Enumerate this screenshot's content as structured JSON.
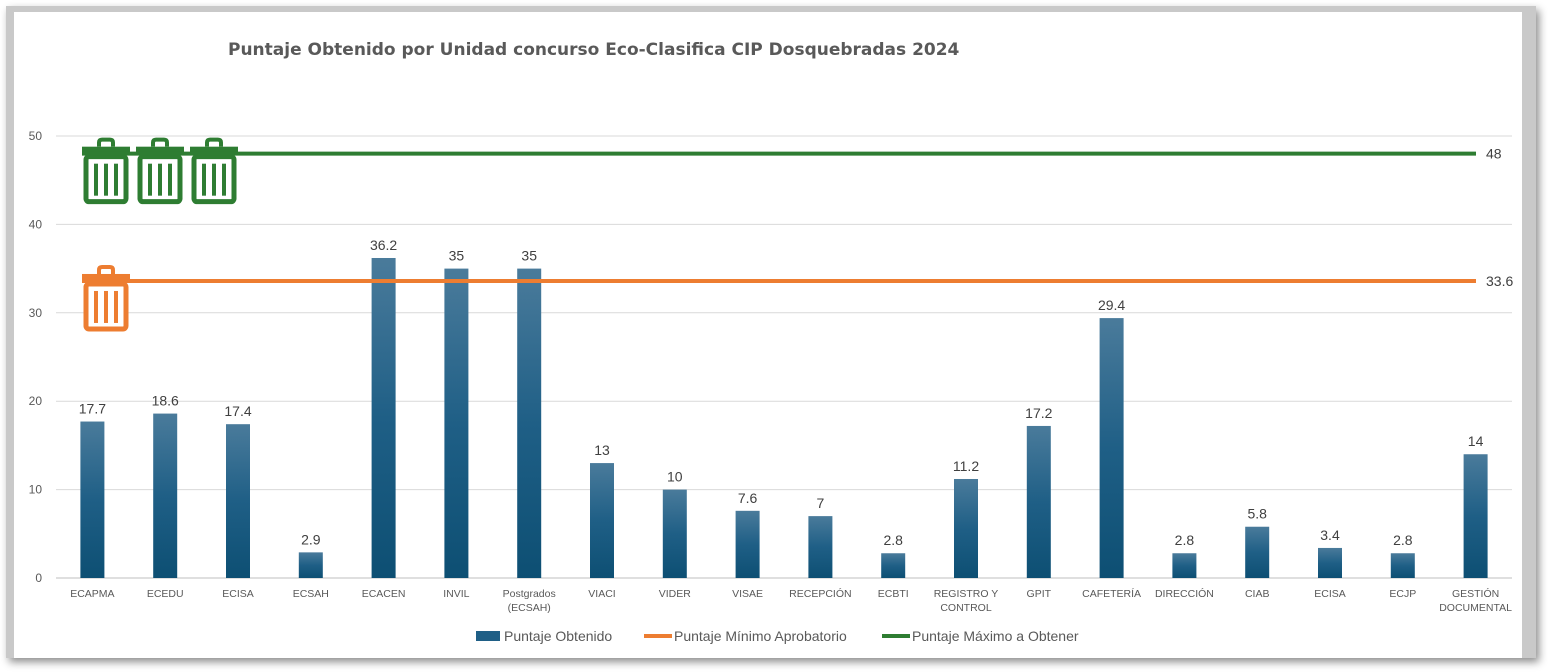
{
  "chart_data": {
    "type": "bar",
    "title": "Puntaje Obtenido por Unidad concurso Eco-Clasifica CIP Dosquebradas 2024",
    "xlabel": "",
    "ylabel": "",
    "ylim": [
      0,
      50
    ],
    "yticks": [
      0,
      10,
      20,
      30,
      40,
      50
    ],
    "grid": true,
    "legend_position": "bottom",
    "categories": [
      [
        "ECAPMA"
      ],
      [
        "ECEDU"
      ],
      [
        "ECISA"
      ],
      [
        "ECSAH"
      ],
      [
        "ECACEN"
      ],
      [
        "INVIL"
      ],
      [
        "Postgrados",
        "(ECSAH)"
      ],
      [
        "VIACI"
      ],
      [
        "VIDER"
      ],
      [
        "VISAE"
      ],
      [
        "RECEPCIÓN"
      ],
      [
        "ECBTI"
      ],
      [
        "REGISTRO Y",
        "CONTROL"
      ],
      [
        "GPIT"
      ],
      [
        "CAFETERÍA"
      ],
      [
        "DIRECCIÓN"
      ],
      [
        "CIAB"
      ],
      [
        "ECISA"
      ],
      [
        "ECJP"
      ],
      [
        "GESTIÓN",
        "DOCUMENTAL"
      ]
    ],
    "series": [
      {
        "name": "Puntaje Obtenido",
        "kind": "bar",
        "color": "#1f5f86",
        "values": [
          17.7,
          18.6,
          17.4,
          2.9,
          36.2,
          35,
          35,
          13,
          10,
          7.6,
          7,
          2.8,
          11.2,
          17.2,
          29.4,
          2.8,
          5.8,
          3.4,
          2.8,
          14
        ],
        "data_labels": [
          "17.7",
          "18.6",
          "17.4",
          "2.9",
          "36.2",
          "35",
          "35",
          "13",
          "10",
          "7.6",
          "7",
          "2.8",
          "11.2",
          "17.2",
          "29.4",
          "2.8",
          "5.8",
          "3.4",
          "2.8",
          "14"
        ]
      },
      {
        "name": "Puntaje Mínimo Aprobatorio",
        "kind": "line",
        "color": "#ed7d31",
        "value": 33.6,
        "data_label": "33.6",
        "icon": "trash-can-icon",
        "icon_count": 1
      },
      {
        "name": "Puntaje Máximo a Obtener",
        "kind": "line",
        "color": "#2e7d32",
        "value": 48,
        "data_label": "48",
        "icon": "trash-can-icon",
        "icon_count": 3
      }
    ]
  }
}
